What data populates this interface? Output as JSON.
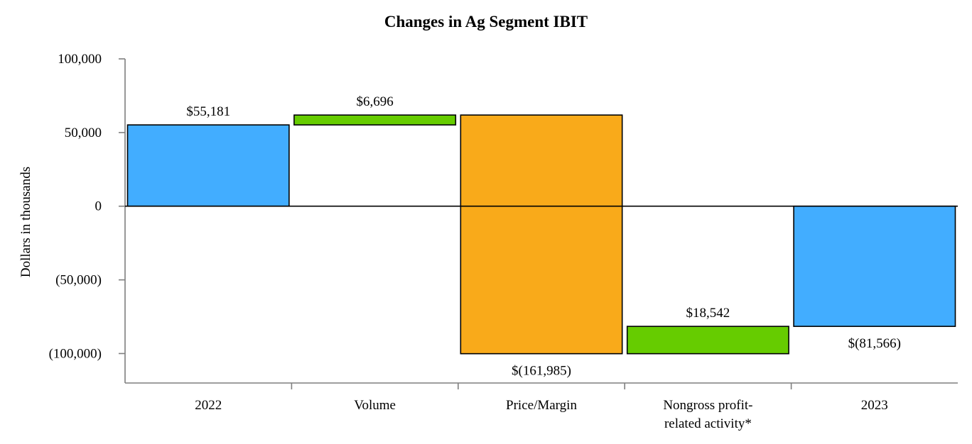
{
  "chart_data": {
    "type": "bar",
    "subtype": "waterfall",
    "title": "Changes in Ag Segment IBIT",
    "ylabel": "Dollars in thousands",
    "xlabel": "",
    "ylim": [
      -120000,
      100000
    ],
    "yticks": [
      100000,
      50000,
      0,
      -50000,
      -100000
    ],
    "ytick_labels": [
      "100,000",
      "50,000",
      "0",
      "(50,000)",
      "(100,000)"
    ],
    "grid": false,
    "legend": "none",
    "categories": [
      "2022",
      "Volume",
      "Price/Margin",
      "Nongross profit-related activity*",
      "2023"
    ],
    "category_label_lines": [
      [
        "2022"
      ],
      [
        "Volume"
      ],
      [
        "Price/Margin"
      ],
      [
        "Nongross profit-",
        "related activity*"
      ],
      [
        "2023"
      ]
    ],
    "steps": [
      {
        "kind": "total",
        "start": 0,
        "end": 55181,
        "value": 55181,
        "label": "$55,181",
        "label_position": "above",
        "color": "#42adff"
      },
      {
        "kind": "change",
        "start": 55181,
        "end": 61877,
        "value": 6696,
        "label": "$6,696",
        "label_position": "above",
        "color": "#66cc00"
      },
      {
        "kind": "change",
        "start": 61877,
        "end": -100108,
        "value": -161985,
        "label": "$(161,985)",
        "label_position": "below",
        "color": "#f9aa1a"
      },
      {
        "kind": "change",
        "start": -100108,
        "end": -81566,
        "value": 18542,
        "label": "$18,542",
        "label_position": "above",
        "color": "#66cc00"
      },
      {
        "kind": "total",
        "start": 0,
        "end": -81566,
        "value": -81566,
        "label": "$(81,566)",
        "label_position": "below",
        "color": "#42adff"
      }
    ]
  }
}
